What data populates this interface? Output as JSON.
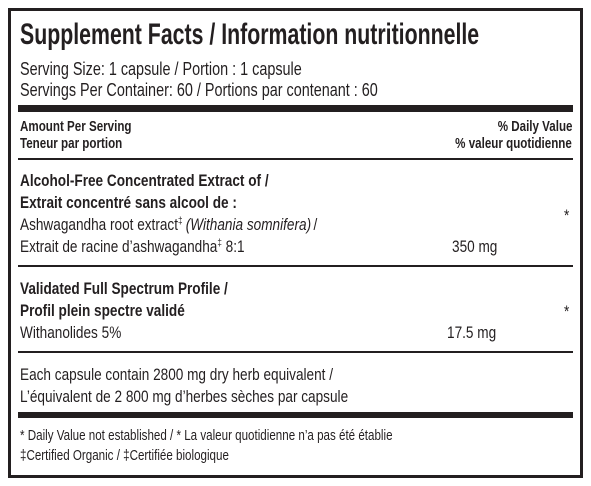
{
  "header": {
    "title": "Supplement Facts / Information nutritionnelle",
    "serving_size": "Serving Size: 1 capsule / Portion : 1 capsule",
    "servings_per_container": "Servings Per Container: 60 / Portions par contenant : 60"
  },
  "column_headers": {
    "amount": [
      "Amount Per Serving",
      "Teneur par portion"
    ],
    "daily_value": [
      "% Daily Value",
      "% valeur quotidienne"
    ]
  },
  "ingredients": [
    {
      "heading": [
        "Alcohol-Free Concentrated Extract of /",
        "Extrait concentré sans alcool de :"
      ],
      "line1": {
        "name": "Ashwagandha root extract",
        "mark": "‡",
        "latin": "(Withania somnifera)",
        "tail": "/"
      },
      "line2": {
        "name": "Extrait de racine d’ashwagandha",
        "mark": "‡",
        "tail": "8:1"
      },
      "amount": "350 mg",
      "daily_value": "*"
    },
    {
      "heading": [
        "Validated Full Spectrum Profile /",
        "Profil plein spectre validé"
      ],
      "line1": {
        "name": "Withanolides 5%"
      },
      "amount": "17.5 mg",
      "daily_value": "*"
    }
  ],
  "equivalent": [
    "Each capsule contain 2800 mg dry herb equivalent /",
    "L’équivalent de 2 800 mg d’herbes sèches par capsule"
  ],
  "footnotes": [
    "* Daily Value not established / * La valeur quotidienne n’a pas été établie",
    "‡Certified Organic / ‡Certifiée biologique"
  ]
}
